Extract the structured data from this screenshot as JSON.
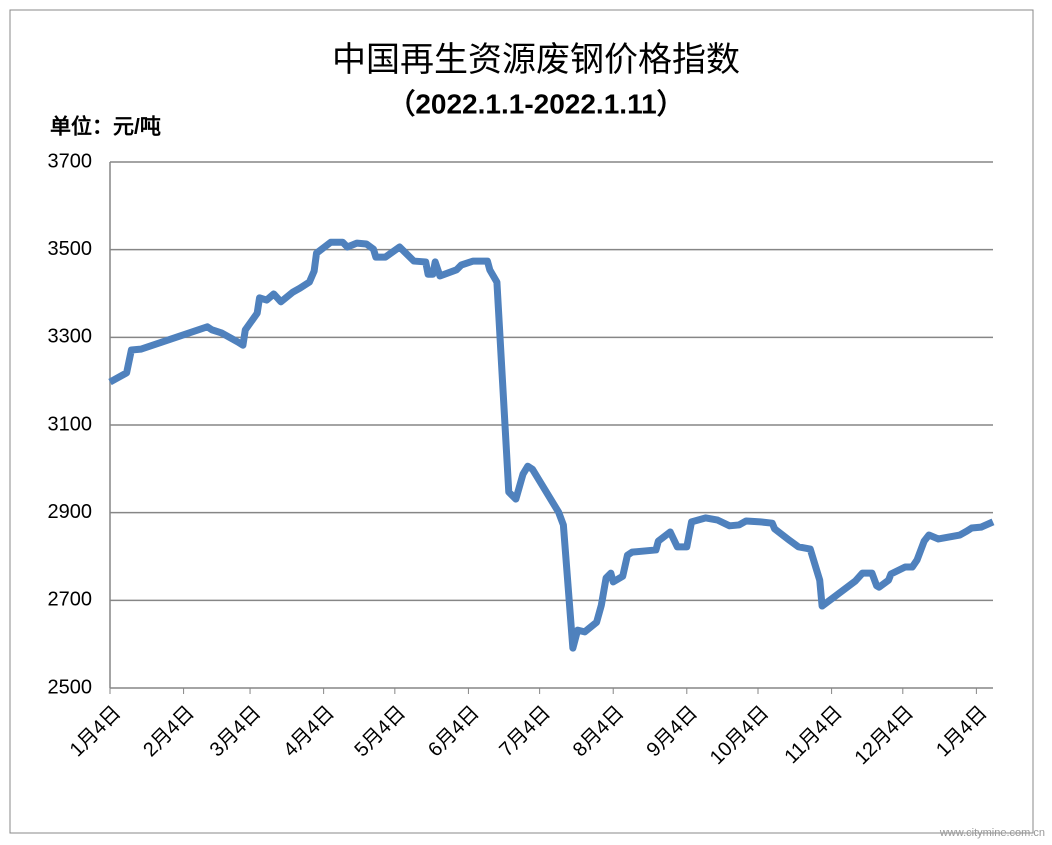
{
  "chart_data": {
    "type": "line",
    "title": "中国再生资源废钢价格指数",
    "subtitle": "（2022.1.1-2022.1.11）",
    "y_unit_label": "单位：元/吨",
    "watermark": "www.citymine.com.cn",
    "xlim": [
      0,
      372
    ],
    "xticks": [
      {
        "value": 0,
        "label": "1月4日"
      },
      {
        "value": 31,
        "label": "2月4日"
      },
      {
        "value": 59,
        "label": "3月4日"
      },
      {
        "value": 90,
        "label": "4月4日"
      },
      {
        "value": 120,
        "label": "5月4日"
      },
      {
        "value": 151,
        "label": "6月4日"
      },
      {
        "value": 181,
        "label": "7月4日"
      },
      {
        "value": 212,
        "label": "8月4日"
      },
      {
        "value": 243,
        "label": "9月4日"
      },
      {
        "value": 273,
        "label": "10月4日"
      },
      {
        "value": 304,
        "label": "11月4日"
      },
      {
        "value": 334,
        "label": "12月4日"
      },
      {
        "value": 365,
        "label": "1月4日"
      }
    ],
    "ylim": [
      2500,
      3700
    ],
    "yticks": [
      2500,
      2700,
      2900,
      3100,
      3300,
      3500,
      3700
    ],
    "grid": true,
    "x": [
      0,
      7,
      9,
      13,
      41,
      43,
      47,
      54,
      56,
      57,
      62,
      63,
      66,
      69,
      72,
      77,
      80,
      84,
      86,
      87,
      93,
      98,
      100,
      104,
      108,
      111,
      112,
      116,
      122,
      128,
      133,
      134,
      136,
      137,
      139,
      146,
      148,
      153,
      159,
      160,
      163,
      167,
      168,
      171,
      174,
      176,
      178,
      189,
      191,
      195,
      197,
      200,
      205,
      207,
      209,
      211,
      212,
      216,
      218,
      220,
      230,
      231,
      236,
      239,
      243,
      245,
      251,
      256,
      261,
      265,
      268,
      274,
      279,
      280,
      286,
      290,
      295,
      299,
      300,
      314,
      317,
      321,
      323,
      324,
      328,
      329,
      335,
      338,
      340,
      343,
      345,
      349,
      358,
      361,
      363,
      367,
      372
    ],
    "series": [
      {
        "name": "废钢价格指数",
        "color": "#4f81bd",
        "values": [
          3198,
          3219,
          3271,
          3273,
          3324,
          3317,
          3310,
          3289,
          3282,
          3317,
          3355,
          3390,
          3385,
          3399,
          3381,
          3403,
          3412,
          3426,
          3451,
          3492,
          3517,
          3517,
          3506,
          3515,
          3513,
          3501,
          3483,
          3483,
          3506,
          3474,
          3472,
          3444,
          3444,
          3472,
          3440,
          3454,
          3465,
          3474,
          3474,
          3454,
          3426,
          3043,
          2947,
          2931,
          2988,
          3006,
          2999,
          2901,
          2872,
          2591,
          2632,
          2628,
          2650,
          2689,
          2751,
          2762,
          2742,
          2755,
          2803,
          2810,
          2815,
          2835,
          2856,
          2822,
          2822,
          2879,
          2888,
          2883,
          2870,
          2872,
          2881,
          2879,
          2876,
          2863,
          2838,
          2822,
          2817,
          2746,
          2687,
          2744,
          2762,
          2762,
          2733,
          2730,
          2746,
          2760,
          2776,
          2776,
          2792,
          2835,
          2849,
          2840,
          2849,
          2858,
          2865,
          2867,
          2879
        ]
      }
    ]
  }
}
